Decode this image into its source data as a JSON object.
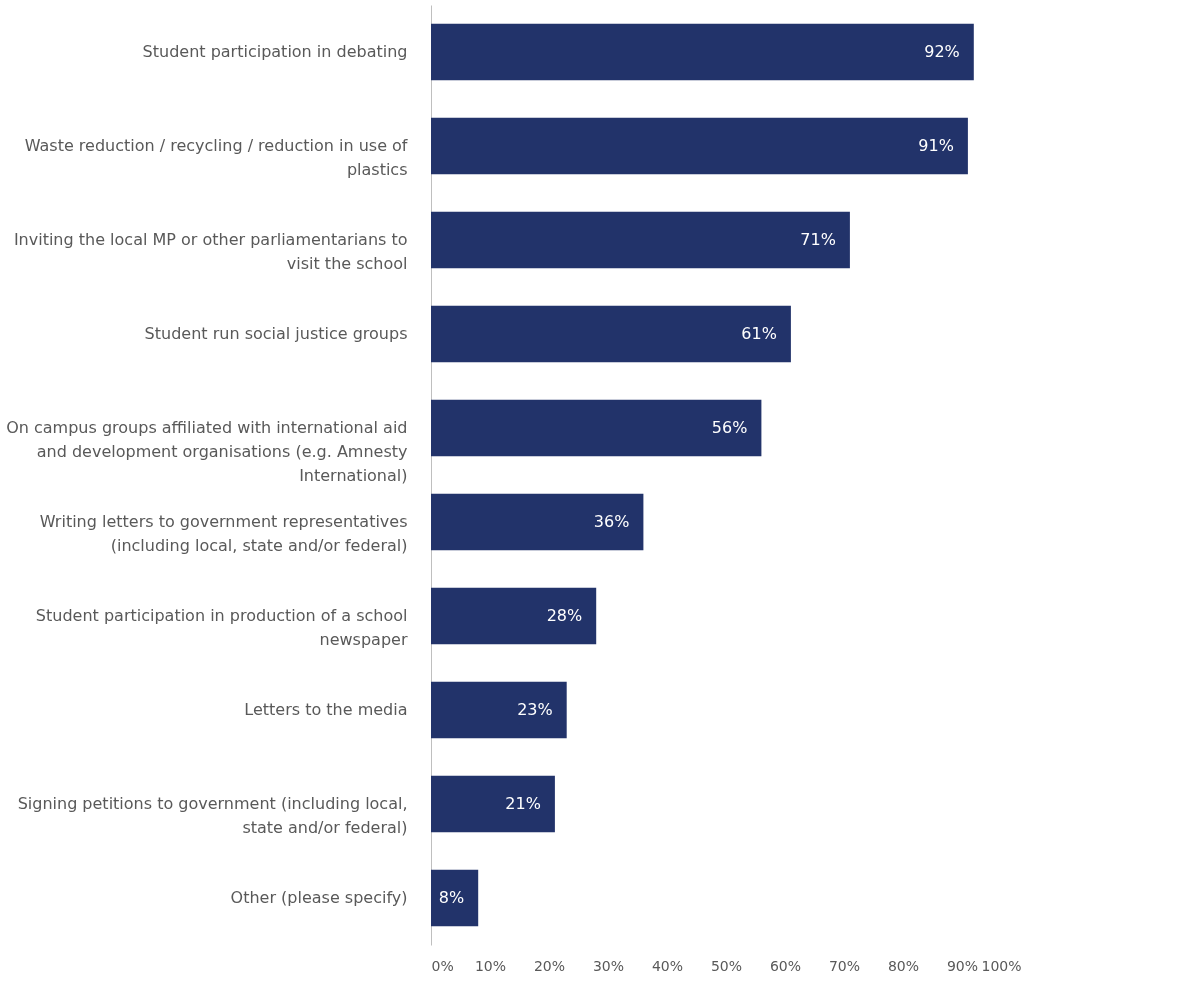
{
  "chart_data": {
    "type": "bar",
    "orientation": "horizontal",
    "categories": [
      "Student participation in debating",
      "Waste reduction / recycling / reduction in use of plastics",
      "Inviting the local MP or other parliamentarians to visit the school",
      "Student run social justice groups",
      "On campus groups affiliated with international aid and development organisations (e.g. Amnesty International)",
      "Writing letters to government representatives (including local, state and/or federal)",
      "Student participation in production of a school newspaper",
      "Letters to the media",
      "Signing petitions to government (including local, state and/or federal)",
      "Other (please specify)"
    ],
    "values": [
      92,
      91,
      71,
      61,
      56,
      36,
      28,
      23,
      21,
      8
    ],
    "value_labels": [
      "92%",
      "91%",
      "71%",
      "61%",
      "56%",
      "36%",
      "28%",
      "23%",
      "21%",
      "8%"
    ],
    "color": "#22336a",
    "xlim": [
      0,
      100
    ],
    "xticks": [
      {
        "value": 0,
        "label": "0%"
      },
      {
        "value": 10,
        "label": "10%"
      },
      {
        "value": 20,
        "label": "20%"
      },
      {
        "value": 30,
        "label": "30%"
      },
      {
        "value": 40,
        "label": "40%"
      },
      {
        "value": 50,
        "label": "50%"
      },
      {
        "value": 60,
        "label": "60%"
      },
      {
        "value": 70,
        "label": "70%"
      },
      {
        "value": 80,
        "label": "80%"
      },
      {
        "value": 90,
        "label": "90%"
      },
      {
        "value": 100,
        "label": "100%"
      }
    ]
  }
}
